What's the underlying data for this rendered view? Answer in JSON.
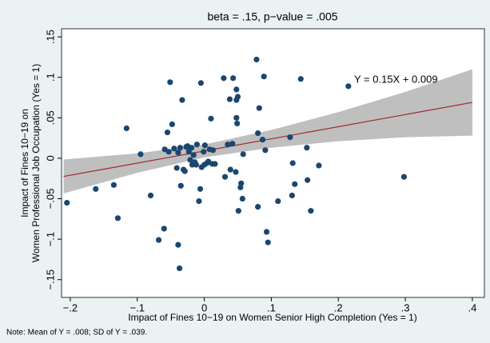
{
  "chart_data": {
    "type": "scatter",
    "title": "beta = .15, p−value = .005",
    "x_label": "Impact of Fines 10−19 on Women Senior High Completion (Yes = 1)",
    "y_label": [
      "Impact of Fines 10−19 on",
      "Women Professional Job Occupation (Yes = 1)"
    ],
    "note": "Note: Mean of Y = .008; SD of Y = .039.",
    "annotation": "Y = 0.15X + 0.009",
    "color": "#1a476f",
    "xlim": [
      -0.213,
      0.418
    ],
    "ylim": [
      -0.172,
      0.16
    ],
    "xticks": [
      {
        "value": -0.2,
        "label": "−.2"
      },
      {
        "value": -0.1,
        "label": "−.1"
      },
      0,
      {
        "value": 0.1,
        "label": ".1"
      },
      {
        "value": 0.2,
        "label": ".2"
      },
      {
        "value": 0.3,
        "label": ".3"
      },
      {
        "value": 0.4,
        "label": ".4"
      }
    ],
    "yticks": [
      {
        "value": -0.15,
        "label": "−.15"
      },
      {
        "value": -0.1,
        "label": "−.1"
      },
      {
        "value": -0.05,
        "label": "−.05"
      },
      0,
      {
        "value": 0.05,
        "label": ".05"
      },
      {
        "value": 0.1,
        "label": ".1"
      },
      {
        "value": 0.15,
        "label": ".15"
      }
    ],
    "x": [
      -0.205,
      -0.162,
      -0.135,
      -0.129,
      -0.116,
      -0.095,
      -0.08,
      -0.068,
      -0.06,
      -0.059,
      -0.055,
      -0.051,
      -0.048,
      -0.053,
      -0.045,
      -0.041,
      -0.039,
      -0.039,
      -0.037,
      -0.036,
      -0.035,
      -0.033,
      -0.031,
      -0.029,
      -0.027,
      -0.025,
      -0.023,
      -0.021,
      -0.019,
      -0.018,
      -0.016,
      -0.014,
      -0.012,
      -0.011,
      -0.008,
      -0.006,
      -0.005,
      -0.004,
      -0.001,
      0,
      0.001,
      0.004,
      0.006,
      0.008,
      0.01,
      0.012,
      0.013,
      0.016,
      0.029,
      0.031,
      0.035,
      0.038,
      0.039,
      0.042,
      0.043,
      0.047,
      0.048,
      0.048,
      0.048,
      0.049,
      0.05,
      0.051,
      0.054,
      0.055,
      0.057,
      0.058,
      0.078,
      0.08,
      0.082,
      0.08,
      0.087,
      0.089,
      0.091,
      0.093,
      0.095,
      0.11,
      0.128,
      0.131,
      0.135,
      0.132,
      0.144,
      0.153,
      0.154,
      0.159,
      0.171,
      0.215,
      0.298
    ],
    "values": [
      -0.055,
      -0.038,
      -0.033,
      -0.074,
      0.037,
      0.005,
      -0.046,
      -0.101,
      -0.087,
      0.011,
      0.032,
      0.094,
      0.042,
      0.008,
      0.012,
      -0.012,
      0.007,
      -0.107,
      -0.136,
      0.013,
      -0.034,
      0.072,
      -0.014,
      -0.016,
      0.014,
      0.015,
      0.008,
      -0.002,
      0.013,
      -0.008,
      0.004,
      -0.005,
      -0.008,
      0.017,
      -0.053,
      -0.038,
      0.093,
      -0.011,
      0.008,
      -0.008,
      0.016,
      -0.006,
      -0.004,
      0.011,
      0.049,
      -0.007,
      0.01,
      -0.007,
      0.099,
      -0.023,
      0.017,
      0.073,
      -0.014,
      0.018,
      0.099,
      -0.017,
      0.072,
      0.05,
      0.085,
      0.043,
      0.076,
      -0.065,
      -0.036,
      -0.031,
      -0.05,
      0.005,
      0.122,
      0.031,
      0.062,
      -0.06,
      0.023,
      0.101,
      0.01,
      -0.091,
      -0.104,
      -0.053,
      0.026,
      -0.046,
      -0.032,
      -0.006,
      0.098,
      0.013,
      -0.027,
      -0.065,
      -0.009,
      0.089,
      -0.023
    ],
    "fit": {
      "color": "#a0272d",
      "x": [
        -0.21,
        0.4
      ],
      "values": [
        -0.0225,
        0.069
      ]
    },
    "ci": {
      "color": "#bfbfbf",
      "x": [
        -0.21,
        -0.1,
        0,
        0.1,
        0.2,
        0.3,
        0.4
      ],
      "lower": [
        -0.0435,
        -0.018,
        0.001,
        0.013,
        0.021,
        0.026,
        0.028
      ],
      "upper": [
        -0.0015,
        0.006,
        0.017,
        0.035,
        0.057,
        0.082,
        0.11
      ]
    }
  }
}
